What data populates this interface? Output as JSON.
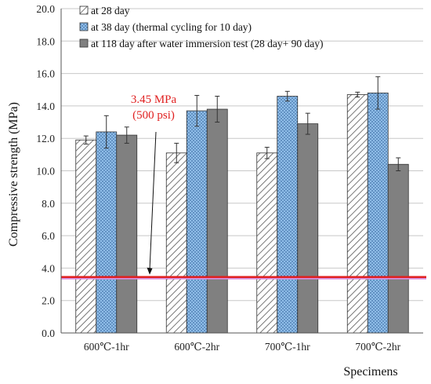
{
  "chart_data": {
    "type": "bar",
    "categories": [
      "600℃-1hr",
      "600℃-2hr",
      "700℃-1hr",
      "700℃-2hr"
    ],
    "series": [
      {
        "name": "at 28 day",
        "values": [
          11.9,
          11.1,
          11.1,
          14.7
        ],
        "errors": [
          0.25,
          0.6,
          0.35,
          0.15
        ],
        "pattern": "hatch"
      },
      {
        "name": "at 38 day (thermal cycling for 10 day)",
        "values": [
          12.4,
          13.7,
          14.6,
          14.8
        ],
        "errors": [
          1.0,
          0.95,
          0.3,
          1.0
        ],
        "pattern": "dots"
      },
      {
        "name": "at 118 day after water immersion test (28 day+ 90 day)",
        "values": [
          12.2,
          13.8,
          12.9,
          10.4
        ],
        "errors": [
          0.5,
          0.8,
          0.65,
          0.4
        ],
        "pattern": "solid"
      }
    ],
    "xlabel": "Specimens",
    "ylabel": "Compressive strength (MPa)",
    "ylim": [
      0,
      20
    ],
    "yticks": [
      "0.0",
      "2.0",
      "4.0",
      "6.0",
      "8.0",
      "10.0",
      "12.0",
      "14.0",
      "16.0",
      "18.0",
      "20.0"
    ],
    "grid": true,
    "legend_position": "top-left",
    "reference_line": {
      "value": 3.45,
      "color": "#e02020"
    },
    "annotation": {
      "line1": "3.45 MPa",
      "line2": "(500 psi)",
      "color": "#e02020"
    },
    "colors": {
      "series_2_fill": "#8fbde8",
      "series_3_fill": "#808080",
      "grid": "#c8c8c8"
    }
  }
}
